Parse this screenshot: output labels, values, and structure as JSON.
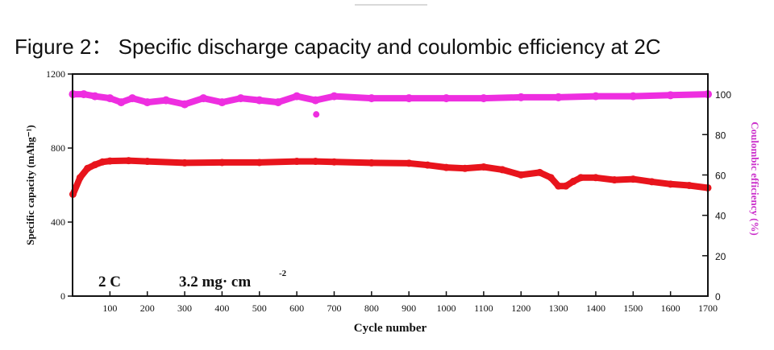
{
  "figure": {
    "title": "Figure 2： Specific discharge capacity and coulombic efficiency at 2C"
  },
  "colors": {
    "capacity_series": "#e8141c",
    "efficiency_series": "#ee2ee0",
    "axes": "#111111",
    "right_axis_label": "#cc33cc"
  },
  "chart_data": {
    "type": "scatter",
    "xlabel": "Cycle number",
    "ylabel_left": "Specific capacity (mAhg⁻¹)",
    "ylabel_right": "Coulombic efficiency (%)",
    "xlim": [
      0,
      1700
    ],
    "ylim_left": [
      0,
      1200
    ],
    "ylim_right": [
      0,
      110
    ],
    "xticks": [
      100,
      200,
      300,
      400,
      500,
      600,
      700,
      800,
      900,
      1000,
      1100,
      1200,
      1300,
      1400,
      1500,
      1600,
      1700
    ],
    "yticks_left": [
      0,
      400,
      800,
      1200
    ],
    "yticks_right": [
      0,
      20,
      40,
      60,
      80,
      100
    ],
    "annotations": {
      "rate": "2 C",
      "loading": "3.2 mg· cm",
      "loading_exponent": "-2"
    },
    "series": [
      {
        "axis": "left",
        "x": [
          1,
          20,
          40,
          60,
          80,
          100,
          150,
          200,
          300,
          400,
          500,
          600,
          650,
          700,
          800,
          900,
          950,
          1000,
          1050,
          1100,
          1150,
          1200,
          1250,
          1280,
          1300,
          1320,
          1340,
          1360,
          1400,
          1450,
          1500,
          1550,
          1600,
          1650,
          1700
        ],
        "values": [
          550,
          640,
          690,
          710,
          725,
          730,
          732,
          728,
          720,
          722,
          722,
          728,
          728,
          725,
          720,
          718,
          708,
          695,
          690,
          698,
          683,
          655,
          668,
          640,
          595,
          595,
          620,
          640,
          640,
          628,
          632,
          618,
          605,
          598,
          585
        ]
      },
      {
        "axis": "right",
        "x": [
          1,
          30,
          60,
          100,
          130,
          160,
          200,
          250,
          300,
          350,
          400,
          450,
          500,
          550,
          600,
          650,
          700,
          800,
          900,
          1000,
          1100,
          1200,
          1300,
          1400,
          1500,
          1600,
          1700
        ],
        "values": [
          100,
          100,
          99,
          98,
          96,
          98,
          96,
          97,
          95,
          98,
          96,
          98,
          97,
          96,
          99,
          97,
          99,
          98,
          98,
          98,
          98,
          98.5,
          98.5,
          99,
          99,
          99.5,
          100
        ]
      }
    ],
    "outliers_right": [
      {
        "x": 652,
        "value": 90
      }
    ]
  }
}
